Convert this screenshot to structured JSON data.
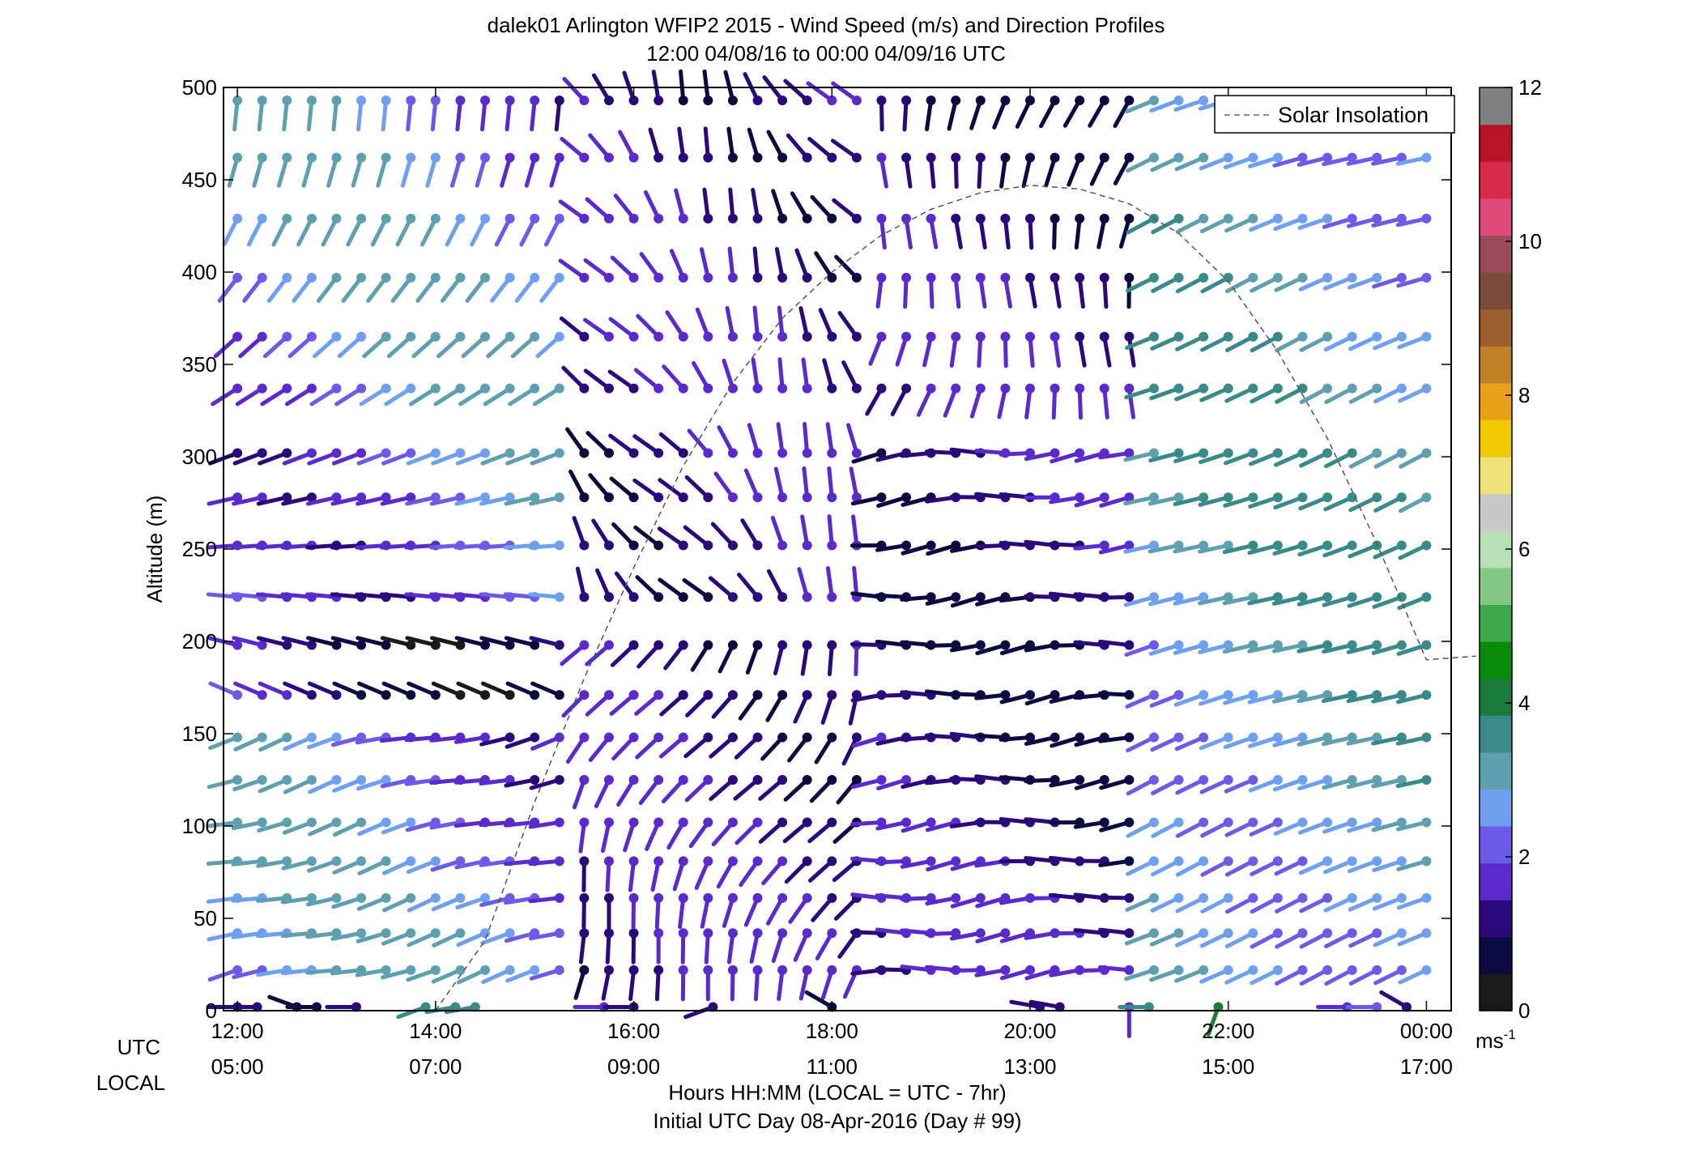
{
  "chart_data": {
    "type": "wind-barb profile",
    "title": "dalek01 Arlington WFIP2 2015 - Wind Speed (m/s) and Direction Profiles",
    "subtitle": "12:00 04/08/16 to 00:00 04/09/16  UTC",
    "ylabel": "Altitude (m)",
    "xlabel": "Hours HH:MM  (LOCAL = UTC - 7hr)",
    "xlabel2": "Initial UTC Day 08-Apr-2016 (Day # 99)",
    "utc_label": "UTC",
    "local_label": "LOCAL",
    "ylim": [
      0,
      500
    ],
    "yticks": [
      "0",
      "50",
      "100",
      "150",
      "200",
      "250",
      "300",
      "350",
      "400",
      "450",
      "500"
    ],
    "xlim_hours": [
      11.86,
      24.25
    ],
    "xticks_utc": [
      "12:00",
      "14:00",
      "16:00",
      "18:00",
      "20:00",
      "22:00",
      "00:00"
    ],
    "xticks_local": [
      "05:00",
      "07:00",
      "09:00",
      "11:00",
      "13:00",
      "15:00",
      "17:00"
    ],
    "xtick_hours": [
      12,
      14,
      16,
      18,
      20,
      22,
      24
    ],
    "legend": {
      "entry": "Solar Insolation",
      "placement": "top-right",
      "style": "dashed gray"
    },
    "colorbar": {
      "ticks": [
        "0",
        "2",
        "4",
        "6",
        "8",
        "10",
        "12"
      ],
      "range": [
        0,
        12
      ],
      "unit_base": "ms",
      "unit_exp": "-1",
      "colors": [
        "#1a1a1a",
        "#0c0a40",
        "#2a0a7a",
        "#5a2acc",
        "#6c5ae8",
        "#6fa0f0",
        "#5fa0b0",
        "#3a8a8a",
        "#1a7a3a",
        "#0a8a0a",
        "#3fa84a",
        "#86c686",
        "#b8e0b8",
        "#c8c8c8",
        "#f0e27a",
        "#f0c800",
        "#e8a018",
        "#c08028",
        "#9a6030",
        "#7a4a3a",
        "#9a4a5a",
        "#e04a7a",
        "#d82a4a",
        "#b81428",
        "#808080"
      ]
    },
    "solar_insolation": {
      "hours": [
        14.0,
        14.5,
        15.0,
        15.5,
        16.0,
        16.5,
        17.0,
        17.5,
        18.0,
        18.5,
        19.0,
        19.5,
        20.0,
        20.5,
        21.0,
        21.5,
        22.0,
        22.5,
        23.0,
        23.5,
        24.0,
        24.5
      ],
      "altitude": [
        0,
        38,
        113,
        180,
        240,
        295,
        340,
        375,
        400,
        420,
        434,
        443,
        447,
        445,
        437,
        421,
        395,
        357,
        310,
        253,
        190,
        192
      ]
    },
    "series": [
      {
        "name": "barbs-h0",
        "altitude": 2,
        "hours": [
          12.0,
          12.2,
          12.6,
          12.8,
          13.2,
          13.9,
          14.2,
          14.4,
          15.7,
          16.0,
          16.8,
          18.0,
          20.1,
          20.3,
          21.0,
          21.2,
          21.9,
          23.2,
          23.5,
          23.8
        ],
        "speed": [
          1.0,
          1.0,
          0.8,
          0.9,
          1.0,
          3.8,
          3.8,
          3.8,
          1.5,
          1.0,
          1.0,
          0.8,
          1.0,
          1.2,
          1.5,
          3.8,
          4.2,
          1.8,
          2.3,
          1.2
        ],
        "dir": [
          270,
          270,
          290,
          270,
          270,
          250,
          260,
          260,
          270,
          270,
          250,
          300,
          280,
          280,
          180,
          270,
          200,
          270,
          270,
          300
        ]
      }
    ]
  },
  "barb_grid": {
    "altitudes": [
      22,
      42,
      61,
      81,
      102,
      125,
      148,
      171,
      198,
      224,
      252,
      278,
      302,
      337,
      365,
      397,
      429,
      462,
      493
    ],
    "hour_start": 12.0,
    "hour_step": 0.25,
    "hour_end": 24.2
  }
}
